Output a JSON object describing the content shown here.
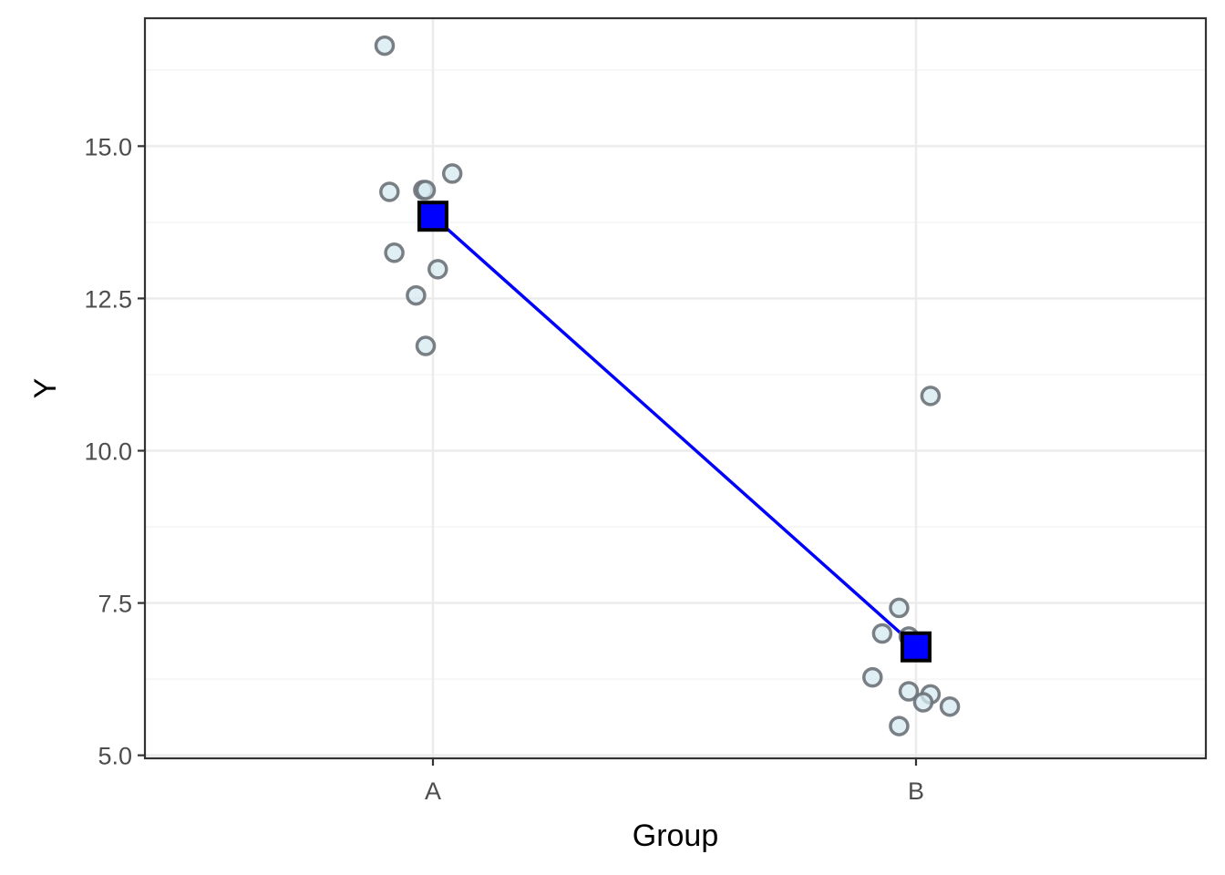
{
  "chart_data": {
    "type": "scatter",
    "xlabel": "Group",
    "ylabel": "Y",
    "categories": [
      "A",
      "B"
    ],
    "ylim": [
      4.95,
      17.1
    ],
    "y_ticks": [
      5.0,
      7.5,
      10.0,
      12.5,
      15.0
    ],
    "y_tick_labels": [
      "5.0",
      "7.5",
      "10.0",
      "12.5",
      "15.0"
    ],
    "grid": true,
    "points": [
      {
        "x": "A",
        "jitter": -0.1,
        "y": 16.65
      },
      {
        "x": "A",
        "jitter": -0.09,
        "y": 14.25
      },
      {
        "x": "A",
        "jitter": -0.02,
        "y": 14.28
      },
      {
        "x": "A",
        "jitter": -0.015,
        "y": 14.28
      },
      {
        "x": "A",
        "jitter": 0.04,
        "y": 14.55
      },
      {
        "x": "A",
        "jitter": -0.08,
        "y": 13.25
      },
      {
        "x": "A",
        "jitter": 0.01,
        "y": 12.98
      },
      {
        "x": "A",
        "jitter": -0.035,
        "y": 12.55
      },
      {
        "x": "A",
        "jitter": -0.015,
        "y": 11.72
      },
      {
        "x": "B",
        "jitter": 0.03,
        "y": 10.9
      },
      {
        "x": "B",
        "jitter": -0.035,
        "y": 7.42
      },
      {
        "x": "B",
        "jitter": -0.07,
        "y": 7.0
      },
      {
        "x": "B",
        "jitter": -0.015,
        "y": 6.95
      },
      {
        "x": "B",
        "jitter": -0.09,
        "y": 6.28
      },
      {
        "x": "B",
        "jitter": -0.015,
        "y": 6.05
      },
      {
        "x": "B",
        "jitter": 0.03,
        "y": 6.0
      },
      {
        "x": "B",
        "jitter": 0.015,
        "y": 5.87
      },
      {
        "x": "B",
        "jitter": 0.07,
        "y": 5.8
      },
      {
        "x": "B",
        "jitter": -0.035,
        "y": 5.48
      }
    ],
    "means": [
      {
        "x": "A",
        "y": 13.85
      },
      {
        "x": "B",
        "y": 6.78
      }
    ],
    "colors": {
      "point_fill": "#d6eaf0",
      "point_stroke": "#6b7278",
      "mean_fill": "#0000ff",
      "mean_stroke": "#000000",
      "line": "#0000ff",
      "grid_major": "#ebebeb",
      "grid_minor": "#f3f3f3",
      "panel_border": "#333333"
    }
  }
}
